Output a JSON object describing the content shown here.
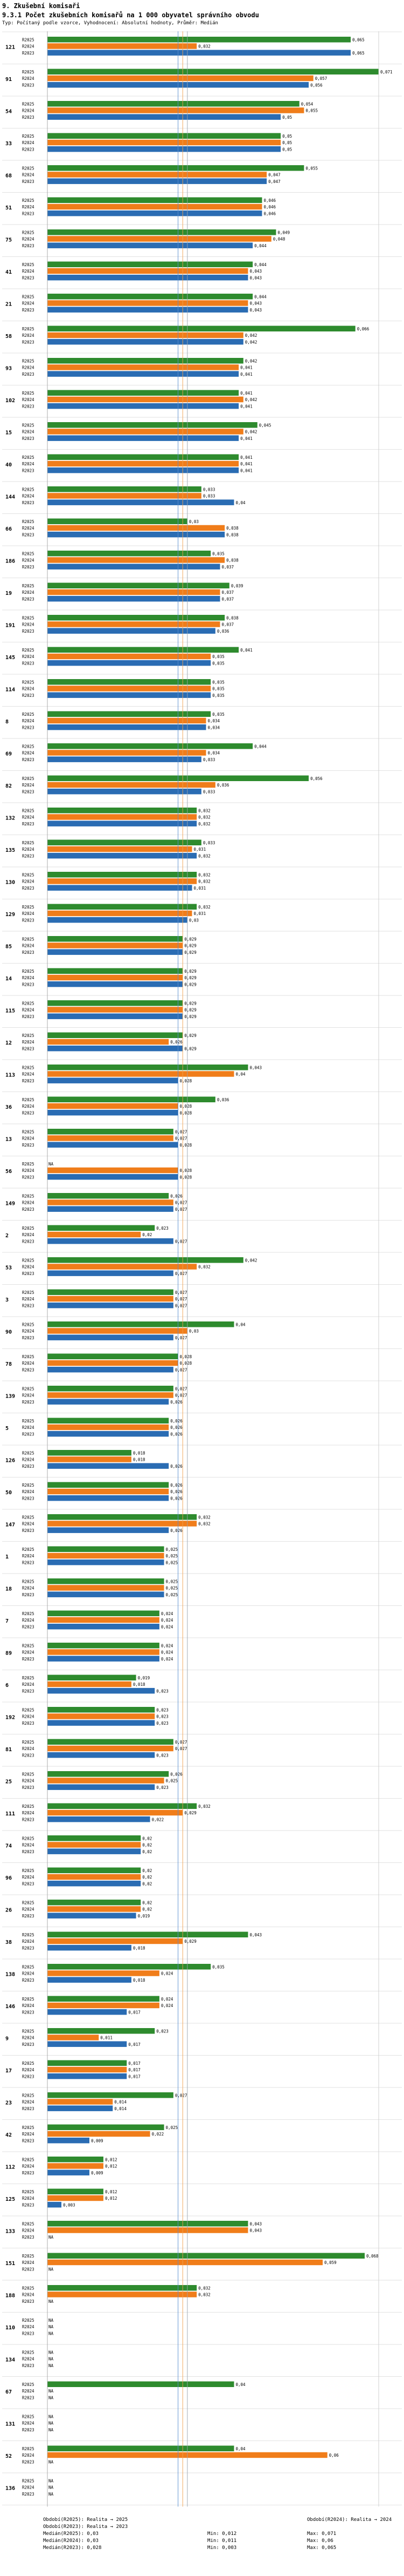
{
  "header": {
    "section": "9. Zkušební komisaři",
    "title": "9.3.1 Počet zkušebních komisařů na 1 000 obyvatel správního obvodu",
    "subtitle": "Typ: Počítaný podle vzorce, Vyhodnocení: Absolutní hodnoty, Průměr: Medián"
  },
  "colors": {
    "R2025": "#2e8b2e",
    "R2024": "#f07d1a",
    "R2023": "#2a6cb3",
    "median_line": "#9aa4ad",
    "median_2024_line": "#f0a050",
    "median_2023_line": "#5b8fd0",
    "max_line": "#cccccc"
  },
  "chart_data": {
    "type": "bar",
    "orientation": "horizontal",
    "series_names": [
      "R2025",
      "R2024",
      "R2023"
    ],
    "xlim": [
      0,
      0.071
    ],
    "medians": {
      "R2025": 0.03,
      "R2024": 0.029,
      "R2023": 0.028
    },
    "na_label": "NA",
    "groups": [
      {
        "id": "121",
        "values": [
          0.065,
          0.032,
          0.065
        ]
      },
      {
        "id": "91",
        "values": [
          0.071,
          0.057,
          0.056
        ]
      },
      {
        "id": "54",
        "values": [
          0.054,
          0.055,
          0.05
        ]
      },
      {
        "id": "33",
        "values": [
          0.05,
          0.05,
          0.05
        ]
      },
      {
        "id": "68",
        "values": [
          0.055,
          0.047,
          0.047
        ]
      },
      {
        "id": "51",
        "values": [
          0.046,
          0.046,
          0.046
        ]
      },
      {
        "id": "75",
        "values": [
          0.049,
          0.048,
          0.044
        ]
      },
      {
        "id": "41",
        "values": [
          0.044,
          0.043,
          0.043
        ]
      },
      {
        "id": "21",
        "values": [
          0.044,
          0.043,
          0.043
        ]
      },
      {
        "id": "58",
        "values": [
          0.066,
          0.042,
          0.042
        ]
      },
      {
        "id": "93",
        "values": [
          0.042,
          0.041,
          0.041
        ]
      },
      {
        "id": "102",
        "values": [
          0.041,
          0.042,
          0.041
        ]
      },
      {
        "id": "15",
        "values": [
          0.045,
          0.042,
          0.041
        ]
      },
      {
        "id": "40",
        "values": [
          0.041,
          0.041,
          0.041
        ]
      },
      {
        "id": "144",
        "values": [
          0.033,
          0.033,
          0.04
        ]
      },
      {
        "id": "66",
        "values": [
          0.03,
          0.038,
          0.038
        ]
      },
      {
        "id": "186",
        "values": [
          0.035,
          0.038,
          0.037
        ]
      },
      {
        "id": "19",
        "values": [
          0.039,
          0.037,
          0.037
        ]
      },
      {
        "id": "191",
        "values": [
          0.038,
          0.037,
          0.036
        ]
      },
      {
        "id": "145",
        "values": [
          0.041,
          0.035,
          0.035
        ]
      },
      {
        "id": "114",
        "values": [
          0.035,
          0.035,
          0.035
        ]
      },
      {
        "id": "8",
        "values": [
          0.035,
          0.034,
          0.034
        ]
      },
      {
        "id": "69",
        "values": [
          0.044,
          0.034,
          0.033
        ]
      },
      {
        "id": "82",
        "values": [
          0.056,
          0.036,
          0.033
        ]
      },
      {
        "id": "132",
        "values": [
          0.032,
          0.032,
          0.032
        ]
      },
      {
        "id": "135",
        "values": [
          0.033,
          0.031,
          0.032
        ]
      },
      {
        "id": "130",
        "values": [
          0.032,
          0.032,
          0.031
        ]
      },
      {
        "id": "129",
        "values": [
          0.032,
          0.031,
          0.03
        ]
      },
      {
        "id": "85",
        "values": [
          0.029,
          0.029,
          0.029
        ]
      },
      {
        "id": "14",
        "values": [
          0.029,
          0.029,
          0.029
        ]
      },
      {
        "id": "115",
        "values": [
          0.029,
          0.029,
          0.029
        ]
      },
      {
        "id": "12",
        "values": [
          0.029,
          0.026,
          0.029
        ]
      },
      {
        "id": "113",
        "values": [
          0.043,
          0.04,
          0.028
        ]
      },
      {
        "id": "36",
        "values": [
          0.036,
          0.028,
          0.028
        ]
      },
      {
        "id": "13",
        "values": [
          0.027,
          0.027,
          0.028
        ]
      },
      {
        "id": "56",
        "values": [
          null,
          0.028,
          0.028
        ]
      },
      {
        "id": "149",
        "values": [
          0.026,
          0.027,
          0.027
        ]
      },
      {
        "id": "2",
        "values": [
          0.023,
          0.02,
          0.027
        ]
      },
      {
        "id": "53",
        "values": [
          0.042,
          0.032,
          0.027
        ]
      },
      {
        "id": "3",
        "values": [
          0.027,
          0.027,
          0.027
        ]
      },
      {
        "id": "90",
        "values": [
          0.04,
          0.03,
          0.027
        ]
      },
      {
        "id": "78",
        "values": [
          0.028,
          0.028,
          0.027
        ]
      },
      {
        "id": "139",
        "values": [
          0.027,
          0.027,
          0.026
        ]
      },
      {
        "id": "5",
        "values": [
          0.026,
          0.026,
          0.026
        ]
      },
      {
        "id": "126",
        "values": [
          0.018,
          0.018,
          0.026
        ]
      },
      {
        "id": "50",
        "values": [
          0.026,
          0.026,
          0.026
        ]
      },
      {
        "id": "147",
        "values": [
          0.032,
          0.032,
          0.026
        ]
      },
      {
        "id": "1",
        "values": [
          0.025,
          0.025,
          0.025
        ]
      },
      {
        "id": "18",
        "values": [
          0.025,
          0.025,
          0.025
        ]
      },
      {
        "id": "7",
        "values": [
          0.024,
          0.024,
          0.024
        ]
      },
      {
        "id": "89",
        "values": [
          0.024,
          0.024,
          0.024
        ]
      },
      {
        "id": "6",
        "values": [
          0.019,
          0.018,
          0.023
        ]
      },
      {
        "id": "192",
        "values": [
          0.023,
          0.023,
          0.023
        ]
      },
      {
        "id": "81",
        "values": [
          0.027,
          0.027,
          0.023
        ]
      },
      {
        "id": "25",
        "values": [
          0.026,
          0.025,
          0.023
        ]
      },
      {
        "id": "111",
        "values": [
          0.032,
          0.029,
          0.022
        ]
      },
      {
        "id": "74",
        "values": [
          0.02,
          0.02,
          0.02
        ]
      },
      {
        "id": "96",
        "values": [
          0.02,
          0.02,
          0.02
        ]
      },
      {
        "id": "26",
        "values": [
          0.02,
          0.02,
          0.019
        ]
      },
      {
        "id": "38",
        "values": [
          0.043,
          0.029,
          0.018
        ]
      },
      {
        "id": "138",
        "values": [
          0.035,
          0.024,
          0.018
        ]
      },
      {
        "id": "146",
        "values": [
          0.024,
          0.024,
          0.017
        ]
      },
      {
        "id": "9",
        "values": [
          0.023,
          0.011,
          0.017
        ]
      },
      {
        "id": "17",
        "values": [
          0.017,
          0.017,
          0.017
        ]
      },
      {
        "id": "23",
        "values": [
          0.027,
          0.014,
          0.014
        ]
      },
      {
        "id": "42",
        "values": [
          0.025,
          0.022,
          0.009
        ]
      },
      {
        "id": "112",
        "values": [
          0.012,
          0.012,
          0.009
        ]
      },
      {
        "id": "125",
        "values": [
          0.012,
          0.012,
          0.003
        ]
      },
      {
        "id": "133",
        "values": [
          0.043,
          0.043,
          null
        ]
      },
      {
        "id": "151",
        "values": [
          0.068,
          0.059,
          null
        ]
      },
      {
        "id": "188",
        "values": [
          0.032,
          0.032,
          null
        ]
      },
      {
        "id": "110",
        "values": [
          null,
          null,
          null
        ]
      },
      {
        "id": "134",
        "values": [
          null,
          null,
          null
        ]
      },
      {
        "id": "67",
        "values": [
          0.04,
          null,
          null
        ]
      },
      {
        "id": "131",
        "values": [
          null,
          null,
          null
        ]
      },
      {
        "id": "52",
        "values": [
          0.04,
          0.06,
          null
        ]
      },
      {
        "id": "136",
        "values": [
          null,
          null,
          null
        ]
      }
    ]
  },
  "footer": {
    "rows": [
      [
        "Období(R2025): Realita → 2025",
        "",
        "Období(R2024): Realita → 2024"
      ],
      [
        "Období(R2023): Realita → 2023",
        "",
        ""
      ],
      [
        "Medián(R2025): 0,03",
        "Min: 0,012",
        "Max: 0,071"
      ],
      [
        "Medián(R2024): 0,03",
        "Min: 0,011",
        "Max: 0,06"
      ],
      [
        "Medián(R2023): 0,028",
        "Min: 0,003",
        "Max: 0,065"
      ]
    ]
  }
}
